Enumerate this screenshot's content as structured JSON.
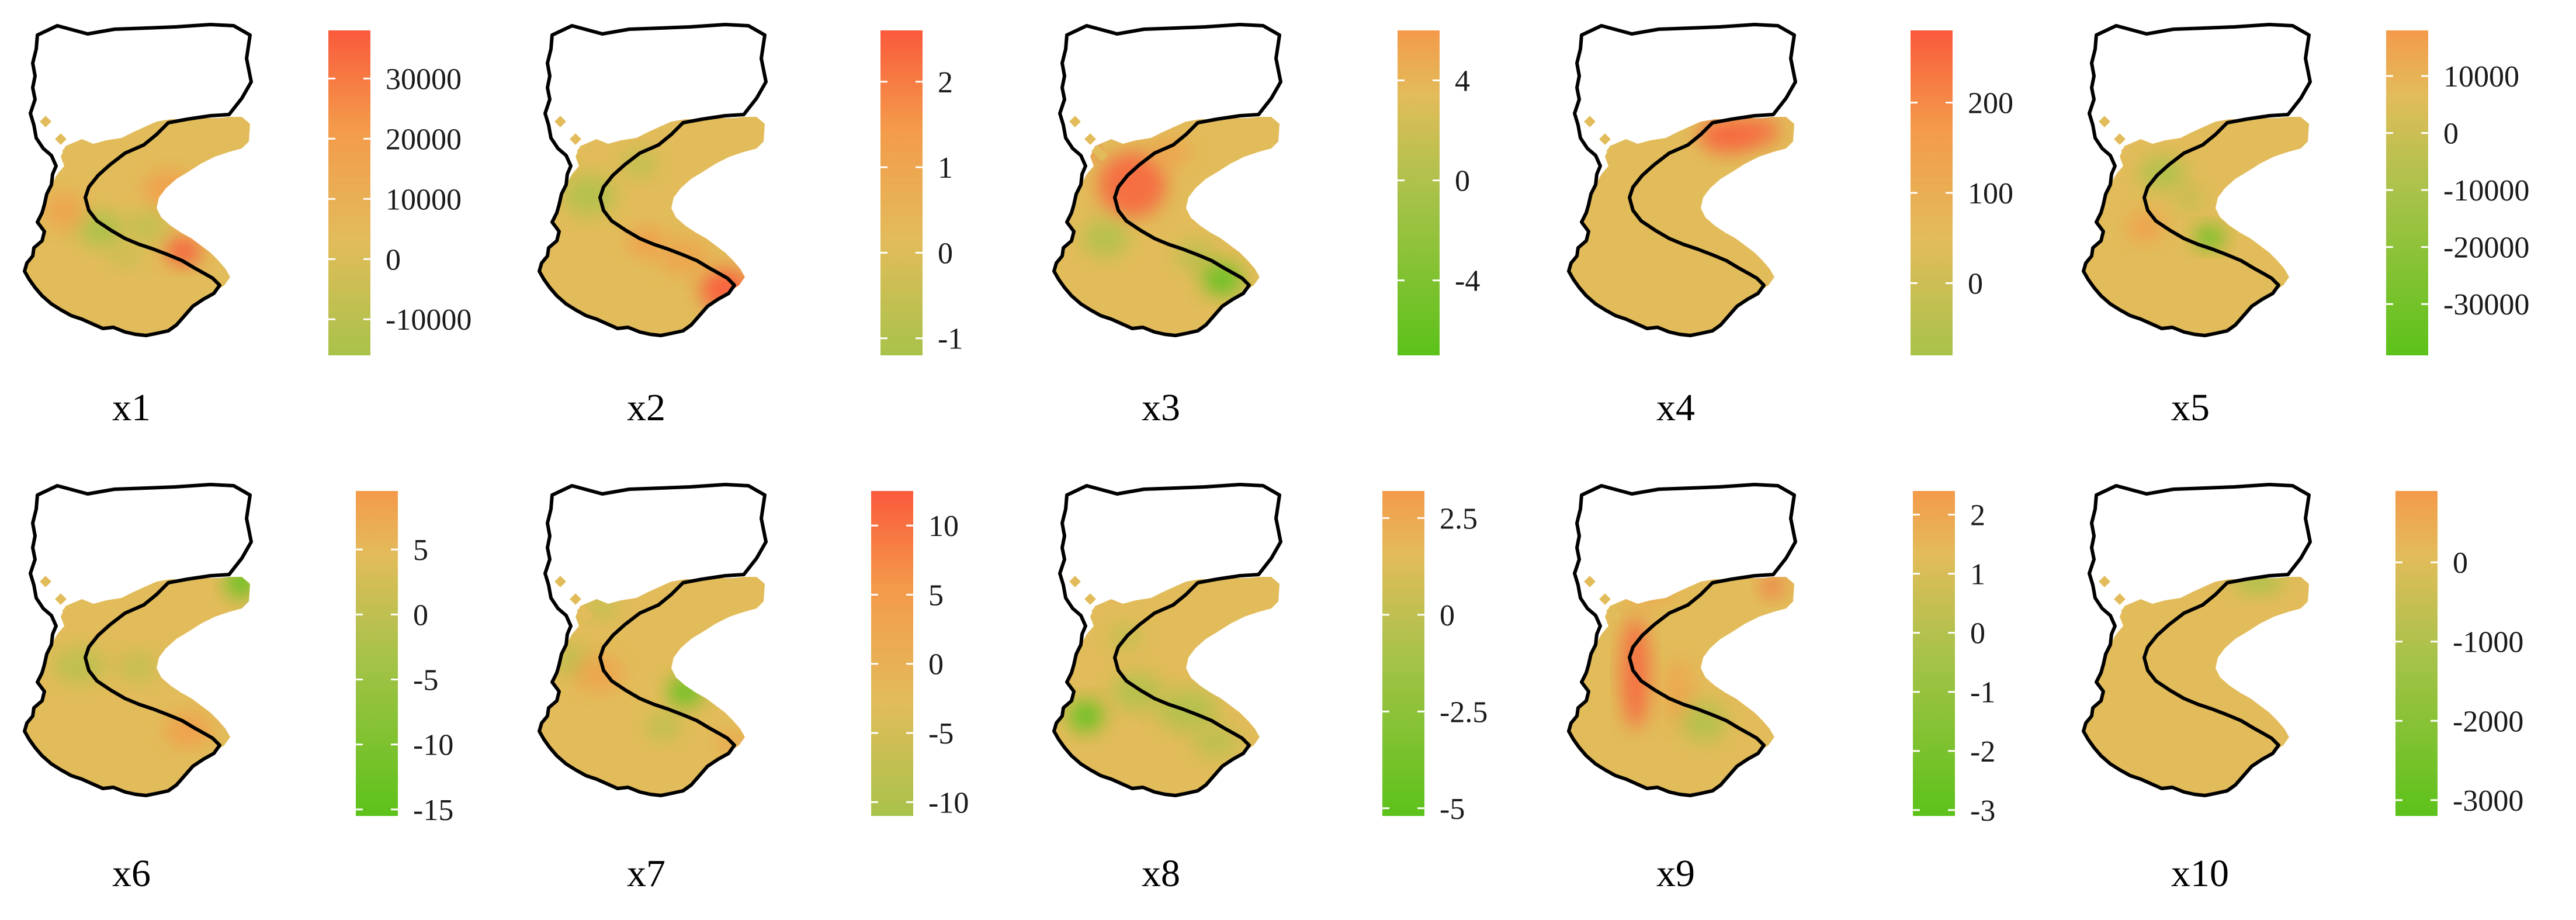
{
  "colors": {
    "green": "#5cc21a",
    "yellowgreen": "#a8c24a",
    "tan": "#e2bc5a",
    "orange": "#f49a4a",
    "red": "#fa5a3c",
    "outline": "#000000"
  },
  "chart_data": [
    {
      "type": "heatmap",
      "label": "x1",
      "scale": {
        "min": -16000,
        "max": 38000
      },
      "ticks": [
        {
          "value": 30000,
          "label": "30000"
        },
        {
          "value": 20000,
          "label": "20000"
        },
        {
          "value": 10000,
          "label": "10000"
        },
        {
          "value": 0,
          "label": "0"
        },
        {
          "value": -10000,
          "label": "-10000"
        }
      ]
    },
    {
      "type": "heatmap",
      "label": "x2",
      "scale": {
        "min": -1.2,
        "max": 2.6
      },
      "ticks": [
        {
          "value": 2,
          "label": "2"
        },
        {
          "value": 1,
          "label": "1"
        },
        {
          "value": 0,
          "label": "0"
        },
        {
          "value": -1,
          "label": "-1"
        }
      ]
    },
    {
      "type": "heatmap",
      "label": "x3",
      "scale": {
        "min": -7,
        "max": 6
      },
      "ticks": [
        {
          "value": 4,
          "label": "4"
        },
        {
          "value": 0,
          "label": "0"
        },
        {
          "value": -4,
          "label": "-4"
        }
      ]
    },
    {
      "type": "heatmap",
      "label": "x4",
      "scale": {
        "min": -80,
        "max": 280
      },
      "ticks": [
        {
          "value": 200,
          "label": "200"
        },
        {
          "value": 100,
          "label": "100"
        },
        {
          "value": 0,
          "label": "0"
        }
      ]
    },
    {
      "type": "heatmap",
      "label": "x5",
      "scale": {
        "min": -39000,
        "max": 18000
      },
      "ticks": [
        {
          "value": 10000,
          "label": "10000"
        },
        {
          "value": 0,
          "label": "0"
        },
        {
          "value": -10000,
          "label": "-10000"
        },
        {
          "value": -20000,
          "label": "-20000"
        },
        {
          "value": -30000,
          "label": "-30000"
        }
      ]
    },
    {
      "type": "heatmap",
      "label": "x6",
      "scale": {
        "min": -15.5,
        "max": 9.5
      },
      "ticks": [
        {
          "value": 5,
          "label": "5"
        },
        {
          "value": 0,
          "label": "0"
        },
        {
          "value": -5,
          "label": "-5"
        },
        {
          "value": -10,
          "label": "-10"
        },
        {
          "value": -15,
          "label": "-15"
        }
      ]
    },
    {
      "type": "heatmap",
      "label": "x7",
      "scale": {
        "min": -11,
        "max": 12.5
      },
      "ticks": [
        {
          "value": 10,
          "label": "10"
        },
        {
          "value": 5,
          "label": "5"
        },
        {
          "value": 0,
          "label": "0"
        },
        {
          "value": -5,
          "label": "-5"
        },
        {
          "value": -10,
          "label": "-10"
        }
      ]
    },
    {
      "type": "heatmap",
      "label": "x8",
      "scale": {
        "min": -5.2,
        "max": 3.2
      },
      "ticks": [
        {
          "value": 2.5,
          "label": "2.5"
        },
        {
          "value": 0,
          "label": "0"
        },
        {
          "value": -2.5,
          "label": "-2.5"
        },
        {
          "value": -5,
          "label": "-5"
        }
      ]
    },
    {
      "type": "heatmap",
      "label": "x9",
      "scale": {
        "min": -3.1,
        "max": 2.4
      },
      "ticks": [
        {
          "value": 2,
          "label": "2"
        },
        {
          "value": 1,
          "label": "1"
        },
        {
          "value": 0,
          "label": "0"
        },
        {
          "value": -1,
          "label": "-1"
        },
        {
          "value": -2,
          "label": "-2"
        },
        {
          "value": -3,
          "label": "-3"
        }
      ]
    },
    {
      "type": "heatmap",
      "label": "x10",
      "scale": {
        "min": -3200,
        "max": 900
      },
      "ticks": [
        {
          "value": 0,
          "label": "0"
        },
        {
          "value": -1000,
          "label": "-1000"
        },
        {
          "value": -2000,
          "label": "-2000"
        },
        {
          "value": -3000,
          "label": "-3000"
        }
      ]
    }
  ]
}
